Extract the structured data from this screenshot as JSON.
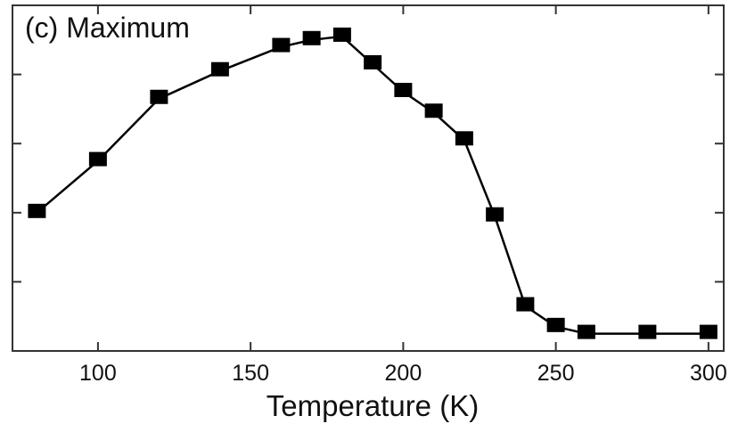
{
  "chart_data": {
    "type": "line",
    "title": "(c) Maximum",
    "xlabel": "Temperature (K)",
    "ylabel": "",
    "xlim": [
      72,
      305
    ],
    "ylim": [
      0,
      1
    ],
    "x_ticks": [
      100,
      150,
      200,
      250,
      300
    ],
    "x_tick_labels": [
      "100",
      "150",
      "200",
      "250",
      "300"
    ],
    "y_ticks_shown_without_labels": true,
    "grid": false,
    "legend": "none",
    "marker": "filled-square",
    "colors": {
      "line": "#000000",
      "marker": "#000000",
      "frame": "#333333"
    },
    "series": [
      {
        "x": [
          80,
          100,
          120,
          140,
          160,
          170,
          180,
          190,
          200,
          210,
          220,
          230,
          240,
          250,
          260,
          280,
          300
        ],
        "y": [
          0.4,
          0.55,
          0.73,
          0.81,
          0.88,
          0.9,
          0.91,
          0.83,
          0.75,
          0.69,
          0.61,
          0.39,
          0.13,
          0.07,
          0.05,
          0.05,
          0.05
        ]
      }
    ]
  }
}
